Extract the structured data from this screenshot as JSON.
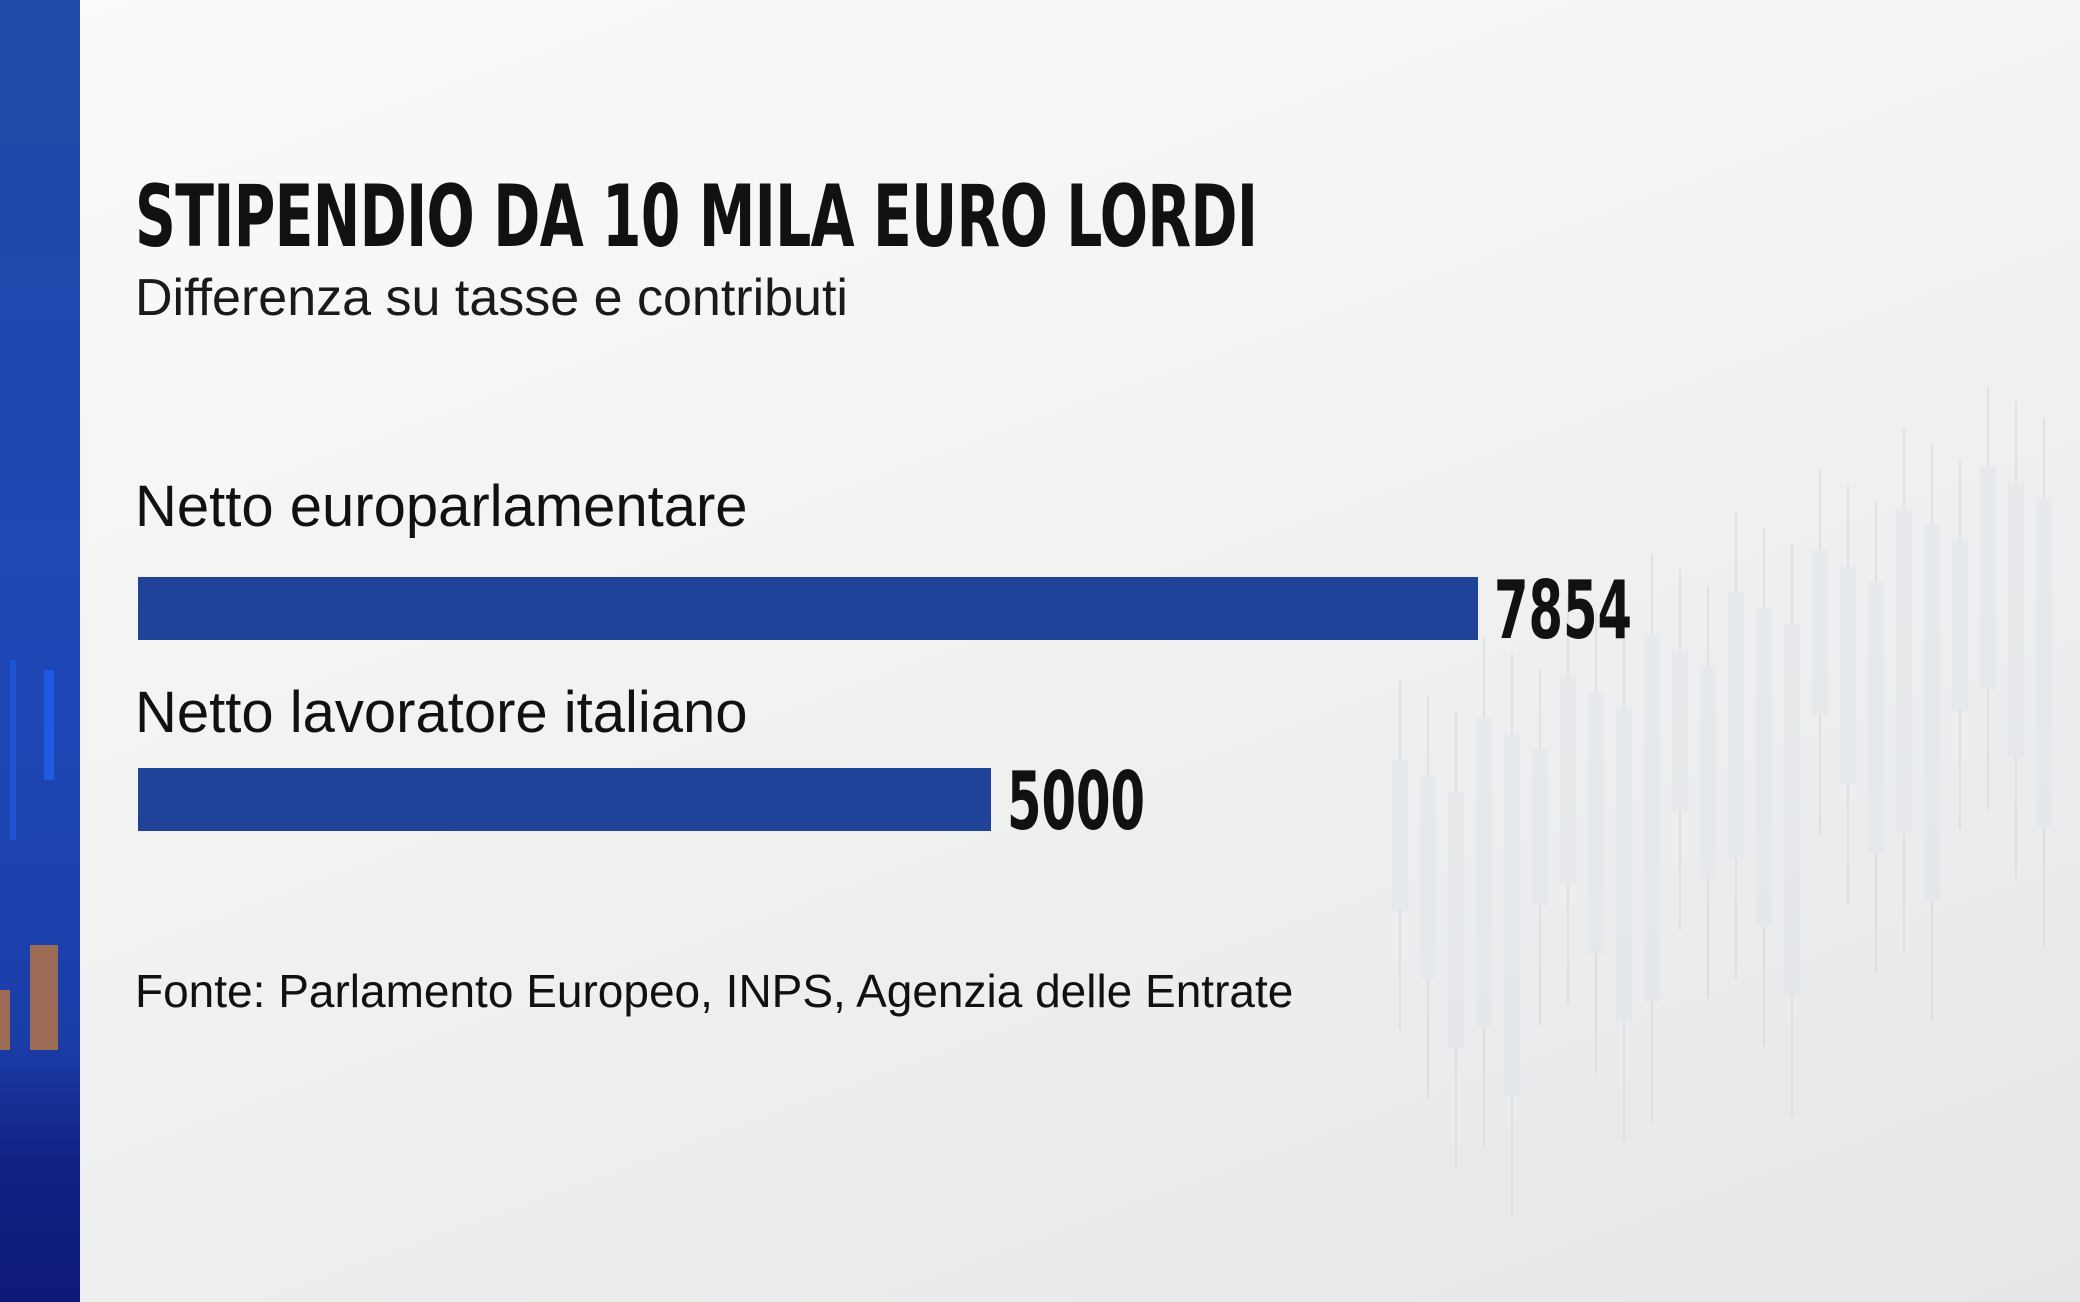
{
  "chart_data": {
    "type": "bar",
    "orientation": "horizontal",
    "title": "STIPENDIO DA 10 MILA EURO LORDI",
    "subtitle": "Differenza su tasse e contributi",
    "categories": [
      "Netto europarlamentare",
      "Netto lavoratore italiano"
    ],
    "values": [
      7854,
      5000
    ],
    "value_labels": [
      "7854",
      "5000"
    ],
    "source": "Fonte: Parlamento Europeo, INPS, Agenzia delle Entrate",
    "grid": false,
    "bar_color": "#1f4399"
  }
}
